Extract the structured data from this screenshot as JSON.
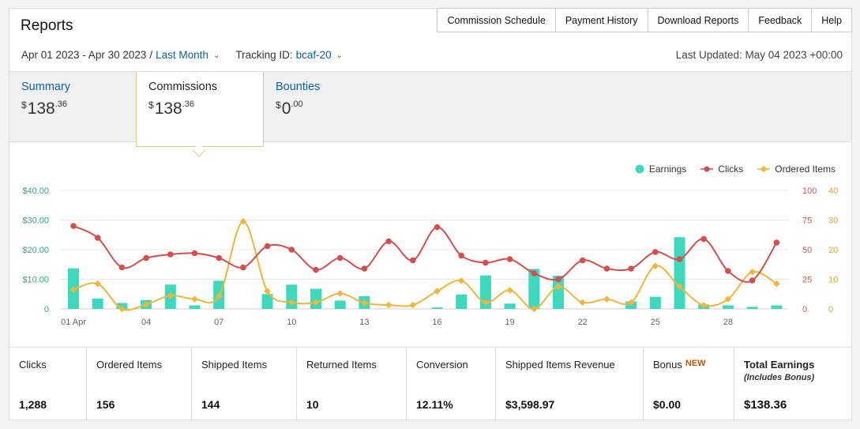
{
  "header": {
    "title": "Reports",
    "nav": [
      "Commission Schedule",
      "Payment History",
      "Download Reports",
      "Feedback",
      "Help"
    ]
  },
  "filters": {
    "date_range": "Apr 01 2023 - Apr 30 2023",
    "separator": "/",
    "period": "Last Month",
    "tracking_label": "Tracking ID:",
    "tracking_id": "bcaf-20",
    "last_updated": "Last Updated: May 04 2023 +00:00"
  },
  "tabs": [
    {
      "label": "Summary",
      "currency": "$",
      "whole": "138",
      "cents": ".36",
      "active": false
    },
    {
      "label": "Commissions",
      "currency": "$",
      "whole": "138",
      "cents": ".36",
      "active": true
    },
    {
      "label": "Bounties",
      "currency": "$",
      "whole": "0",
      "cents": ".00",
      "active": false
    }
  ],
  "colors": {
    "earnings": "#3dd9bd",
    "clicks": "#d64d4d",
    "ordered": "#f2b538",
    "link": "#0f5fa0"
  },
  "chart_data": {
    "type": "bar",
    "legend": [
      "Earnings",
      "Clicks",
      "Ordered Items"
    ],
    "legend_position": "top-right",
    "x_tick_labels": [
      "01 Apr",
      "04",
      "07",
      "10",
      "13",
      "16",
      "19",
      "22",
      "25",
      "28"
    ],
    "y_left_labels": [
      "$40.00",
      "$30.00",
      "$20.00",
      "$10.00",
      "0"
    ],
    "y_right1_labels": [
      "100",
      "75",
      "50",
      "25",
      "0"
    ],
    "y_right2_labels": [
      "40",
      "30",
      "20",
      "10",
      "0"
    ],
    "ylim_left": [
      0,
      40
    ],
    "ylim_right1": [
      0,
      100
    ],
    "ylim_right2": [
      0,
      40
    ],
    "x": [
      1,
      2,
      3,
      4,
      5,
      6,
      7,
      8,
      9,
      10,
      11,
      12,
      13,
      14,
      15,
      16,
      17,
      18,
      19,
      20,
      21,
      22,
      23,
      24,
      25,
      26,
      27,
      28,
      29,
      30
    ],
    "series": [
      {
        "name": "Earnings",
        "kind": "bar",
        "axis": "left",
        "values": [
          13.7,
          3.5,
          2.0,
          3.0,
          8.2,
          1.2,
          9.5,
          0,
          5.0,
          8.2,
          6.8,
          2.8,
          4.3,
          0,
          0,
          0.5,
          4.9,
          11.3,
          1.8,
          13.5,
          11.2,
          0,
          0,
          2.5,
          4.1,
          24.2,
          1.5,
          1.2,
          0.7,
          1.2
        ]
      },
      {
        "name": "Clicks",
        "kind": "line",
        "axis": "right1",
        "values": [
          70,
          60,
          35,
          43,
          46,
          47,
          43,
          35,
          53,
          50,
          33,
          43,
          34,
          57,
          41,
          69,
          45,
          39,
          42,
          30,
          25,
          41,
          34,
          34,
          48,
          42,
          59,
          32,
          24,
          56
        ]
      },
      {
        "name": "Ordered Items",
        "kind": "line",
        "axis": "right2",
        "values": [
          6.5,
          8.5,
          0,
          1.5,
          4.5,
          3.3,
          4.3,
          29.5,
          6,
          2.2,
          2.2,
          5.2,
          2.0,
          1.3,
          1.3,
          6,
          9.5,
          2.2,
          6.3,
          0,
          7.5,
          2.2,
          3.3,
          2.2,
          14.5,
          7.5,
          1.2,
          3.3,
          12.5,
          8.5
        ]
      }
    ]
  },
  "stats": [
    {
      "label": "Clicks",
      "value": "1,288"
    },
    {
      "label": "Ordered Items",
      "value": "156"
    },
    {
      "label": "Shipped Items",
      "value": "144"
    },
    {
      "label": "Returned Items",
      "value": "10"
    },
    {
      "label": "Conversion",
      "value": "12.11%"
    },
    {
      "label": "Shipped Items Revenue",
      "value": "$3,598.97"
    },
    {
      "label": "Bonus",
      "badge": "NEW",
      "value": "$0.00"
    },
    {
      "label": "Total Earnings",
      "sub": "(Includes Bonus)",
      "value": "$138.36"
    }
  ]
}
